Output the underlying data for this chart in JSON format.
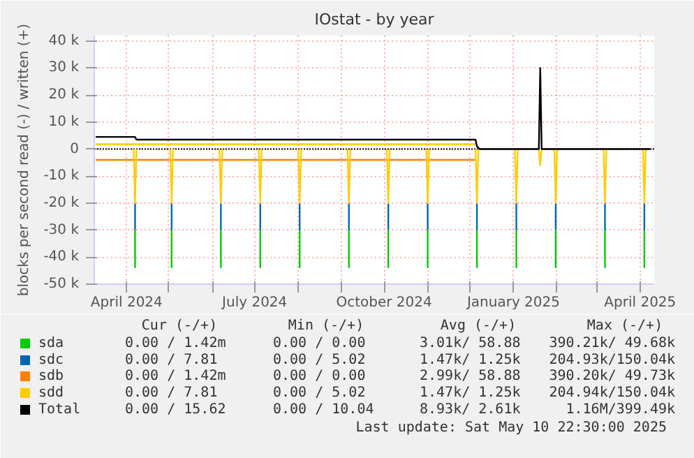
{
  "chart_data": {
    "type": "line",
    "title": "IOstat - by year",
    "ylabel": "blocks per second read (-) / written (+)",
    "xlim": [
      "2024-03-09",
      "2025-04-11"
    ],
    "xticks": [
      {
        "value": "2024-04-01",
        "label": "April 2024"
      },
      {
        "value": "2024-05-01",
        "label": null
      },
      {
        "value": "2024-06-01",
        "label": null
      },
      {
        "value": "2024-07-01",
        "label": "July 2024"
      },
      {
        "value": "2024-08-01",
        "label": null
      },
      {
        "value": "2024-09-01",
        "label": null
      },
      {
        "value": "2024-10-01",
        "label": "October 2024"
      },
      {
        "value": "2024-11-01",
        "label": null
      },
      {
        "value": "2024-12-01",
        "label": null
      },
      {
        "value": "2025-01-01",
        "label": "January 2025"
      },
      {
        "value": "2025-02-01",
        "label": null
      },
      {
        "value": "2025-03-01",
        "label": null
      },
      {
        "value": "2025-04-01",
        "label": "April 2025"
      }
    ],
    "ylim": [
      -50000,
      42000
    ],
    "yticks": [
      {
        "value": -50000,
        "label": "-50 k"
      },
      {
        "value": -40000,
        "label": "-40 k"
      },
      {
        "value": -30000,
        "label": "-30 k"
      },
      {
        "value": -20000,
        "label": "-20 k"
      },
      {
        "value": -10000,
        "label": "-10 k"
      },
      {
        "value": 0,
        "label": "0"
      },
      {
        "value": 10000,
        "label": "10 k"
      },
      {
        "value": 20000,
        "label": "20 k"
      },
      {
        "value": 30000,
        "label": "30 k"
      },
      {
        "value": 40000,
        "label": "40 k"
      }
    ],
    "grid": true,
    "legend": "bottom",
    "ref_lines": [
      {
        "axis": "y",
        "value": 0,
        "color": "#000000",
        "line_style": "dotted"
      }
    ],
    "series": [
      {
        "name": "sda",
        "color": "#00cc00",
        "x": [
          "2024-04-07",
          "2024-04-07"
        ],
        "values": [
          -30000,
          -44000
        ]
      },
      {
        "color": "#00cc00",
        "x": [
          "2024-05-03",
          "2024-05-03"
        ],
        "values": [
          -30000,
          -44000
        ]
      },
      {
        "color": "#00cc00",
        "x": [
          "2024-06-07",
          "2024-06-07"
        ],
        "values": [
          -30000,
          -44000
        ]
      },
      {
        "color": "#00cc00",
        "x": [
          "2024-07-05",
          "2024-07-05"
        ],
        "values": [
          -30000,
          -44000
        ]
      },
      {
        "color": "#00cc00",
        "x": [
          "2024-08-02",
          "2024-08-02"
        ],
        "values": [
          -30000,
          -44000
        ]
      },
      {
        "color": "#00cc00",
        "x": [
          "2024-09-06",
          "2024-09-06"
        ],
        "values": [
          -30000,
          -44000
        ]
      },
      {
        "color": "#00cc00",
        "x": [
          "2024-10-04",
          "2024-10-04"
        ],
        "values": [
          -30000,
          -44000
        ]
      },
      {
        "color": "#00cc00",
        "x": [
          "2024-11-01",
          "2024-11-01"
        ],
        "values": [
          -30000,
          -44000
        ]
      },
      {
        "color": "#00cc00",
        "x": [
          "2024-12-06",
          "2024-12-06"
        ],
        "values": [
          -30000,
          -44000
        ]
      },
      {
        "color": "#00cc00",
        "x": [
          "2025-01-03",
          "2025-01-03"
        ],
        "values": [
          -30000,
          -44000
        ]
      },
      {
        "color": "#00cc00",
        "x": [
          "2025-01-31",
          "2025-01-31"
        ],
        "values": [
          -30000,
          -44000
        ]
      },
      {
        "color": "#00cc00",
        "x": [
          "2025-03-07",
          "2025-03-07"
        ],
        "values": [
          -30000,
          -44000
        ]
      },
      {
        "color": "#00cc00",
        "x": [
          "2025-04-04",
          "2025-04-04"
        ],
        "values": [
          -30000,
          -44000
        ]
      },
      {
        "name": "sdc",
        "color": "#0066b3",
        "x": [
          "2024-04-07",
          "2024-04-07"
        ],
        "values": [
          -20000,
          -30000
        ]
      },
      {
        "color": "#0066b3",
        "x": [
          "2024-05-03",
          "2024-05-03"
        ],
        "values": [
          -20000,
          -30000
        ]
      },
      {
        "color": "#0066b3",
        "x": [
          "2024-06-07",
          "2024-06-07"
        ],
        "values": [
          -20000,
          -30000
        ]
      },
      {
        "color": "#0066b3",
        "x": [
          "2024-07-05",
          "2024-07-05"
        ],
        "values": [
          -20000,
          -30000
        ]
      },
      {
        "color": "#0066b3",
        "x": [
          "2024-08-02",
          "2024-08-02"
        ],
        "values": [
          -20000,
          -30000
        ]
      },
      {
        "color": "#0066b3",
        "x": [
          "2024-09-06",
          "2024-09-06"
        ],
        "values": [
          -20000,
          -30000
        ]
      },
      {
        "color": "#0066b3",
        "x": [
          "2024-10-04",
          "2024-10-04"
        ],
        "values": [
          -20000,
          -30000
        ]
      },
      {
        "color": "#0066b3",
        "x": [
          "2024-11-01",
          "2024-11-01"
        ],
        "values": [
          -20000,
          -30000
        ]
      },
      {
        "color": "#0066b3",
        "x": [
          "2024-12-06",
          "2024-12-06"
        ],
        "values": [
          -20000,
          -30000
        ]
      },
      {
        "color": "#0066b3",
        "x": [
          "2025-01-03",
          "2025-01-03"
        ],
        "values": [
          -20000,
          -30000
        ]
      },
      {
        "color": "#0066b3",
        "x": [
          "2025-01-31",
          "2025-01-31"
        ],
        "values": [
          -20000,
          -30000
        ]
      },
      {
        "color": "#0066b3",
        "x": [
          "2025-03-07",
          "2025-03-07"
        ],
        "values": [
          -20000,
          -30000
        ]
      },
      {
        "color": "#0066b3",
        "x": [
          "2025-04-04",
          "2025-04-04"
        ],
        "values": [
          -20000,
          -30000
        ]
      },
      {
        "name": "sdb",
        "color": "#ff8000",
        "x": [
          "2024-03-10",
          "2024-12-05"
        ],
        "values": [
          -4000,
          -4000
        ]
      },
      {
        "name": "sdd",
        "color": "#ffcc00",
        "x": [
          "2024-04-06",
          "2024-04-07",
          "2024-04-08"
        ],
        "values": [
          0,
          -20000,
          0
        ]
      },
      {
        "color": "#ffcc00",
        "x": [
          "2024-05-02",
          "2024-05-03",
          "2024-05-04"
        ],
        "values": [
          0,
          -20000,
          0
        ]
      },
      {
        "color": "#ffcc00",
        "x": [
          "2024-06-06",
          "2024-06-07",
          "2024-06-08"
        ],
        "values": [
          0,
          -20000,
          0
        ]
      },
      {
        "color": "#ffcc00",
        "x": [
          "2024-07-04",
          "2024-07-05",
          "2024-07-06"
        ],
        "values": [
          0,
          -20000,
          0
        ]
      },
      {
        "color": "#ffcc00",
        "x": [
          "2024-08-01",
          "2024-08-02",
          "2024-08-03"
        ],
        "values": [
          0,
          -20000,
          0
        ]
      },
      {
        "color": "#ffcc00",
        "x": [
          "2024-09-05",
          "2024-09-06",
          "2024-09-07"
        ],
        "values": [
          0,
          -20000,
          0
        ]
      },
      {
        "color": "#ffcc00",
        "x": [
          "2024-10-03",
          "2024-10-04",
          "2024-10-05"
        ],
        "values": [
          0,
          -20000,
          0
        ]
      },
      {
        "color": "#ffcc00",
        "x": [
          "2024-10-31",
          "2024-11-01",
          "2024-11-02"
        ],
        "values": [
          0,
          -20000,
          0
        ]
      },
      {
        "color": "#ffcc00",
        "x": [
          "2024-12-05",
          "2024-12-06",
          "2024-12-07"
        ],
        "values": [
          0,
          -20000,
          0
        ]
      },
      {
        "color": "#ffcc00",
        "x": [
          "2025-01-02",
          "2025-01-03",
          "2025-01-04"
        ],
        "values": [
          0,
          -20000,
          0
        ]
      },
      {
        "color": "#ffcc00",
        "x": [
          "2025-01-19",
          "2025-01-20",
          "2025-01-21"
        ],
        "values": [
          0,
          -6000,
          0
        ]
      },
      {
        "color": "#ffcc00",
        "x": [
          "2025-01-30",
          "2025-01-31",
          "2025-02-01"
        ],
        "values": [
          0,
          -20000,
          0
        ]
      },
      {
        "color": "#ffcc00",
        "x": [
          "2025-03-06",
          "2025-03-07",
          "2025-03-08"
        ],
        "values": [
          0,
          -20000,
          0
        ]
      },
      {
        "color": "#ffcc00",
        "x": [
          "2025-04-03",
          "2025-04-04",
          "2025-04-05"
        ],
        "values": [
          0,
          -20000,
          0
        ]
      },
      {
        "color": "#ffcc00",
        "x": [
          "2024-03-10",
          "2024-12-05"
        ],
        "values": [
          1800,
          1800
        ]
      },
      {
        "name": "Total",
        "color": "#000000",
        "x": [
          "2024-03-10",
          "2024-04-07",
          "2024-04-08",
          "2024-12-05",
          "2024-12-06",
          "2024-12-08",
          "2025-01-19",
          "2025-01-20",
          "2025-01-21",
          "2025-04-08"
        ],
        "values": [
          4500,
          4500,
          3500,
          3500,
          1000,
          0,
          0,
          30000,
          0,
          0
        ]
      }
    ],
    "annotations": [
      "Cur (-/+)",
      "Min (-/+)",
      "Avg (-/+)",
      "Max (-/+)",
      "0.00 /  1.42m",
      "0.00 /  0.00",
      "3.01k/ 58.88",
      "390.21k/ 49.68k",
      "0.00 /  7.81",
      "0.00 /  5.02",
      "1.47k/  1.25k",
      "204.93k/150.04k",
      "0.00 /  1.42m",
      "0.00 /  0.00",
      "2.99k/ 58.88",
      "390.20k/ 49.73k",
      "0.00 /  7.81",
      "0.00 /  5.02",
      "1.47k/  1.25k",
      "204.94k/150.04k",
      "0.00 / 15.62",
      "0.00 / 10.04",
      "8.93k/  2.61k",
      "1.16M/399.49k",
      "Last update:  Sat May 10 22:30:00 2025"
    ]
  }
}
